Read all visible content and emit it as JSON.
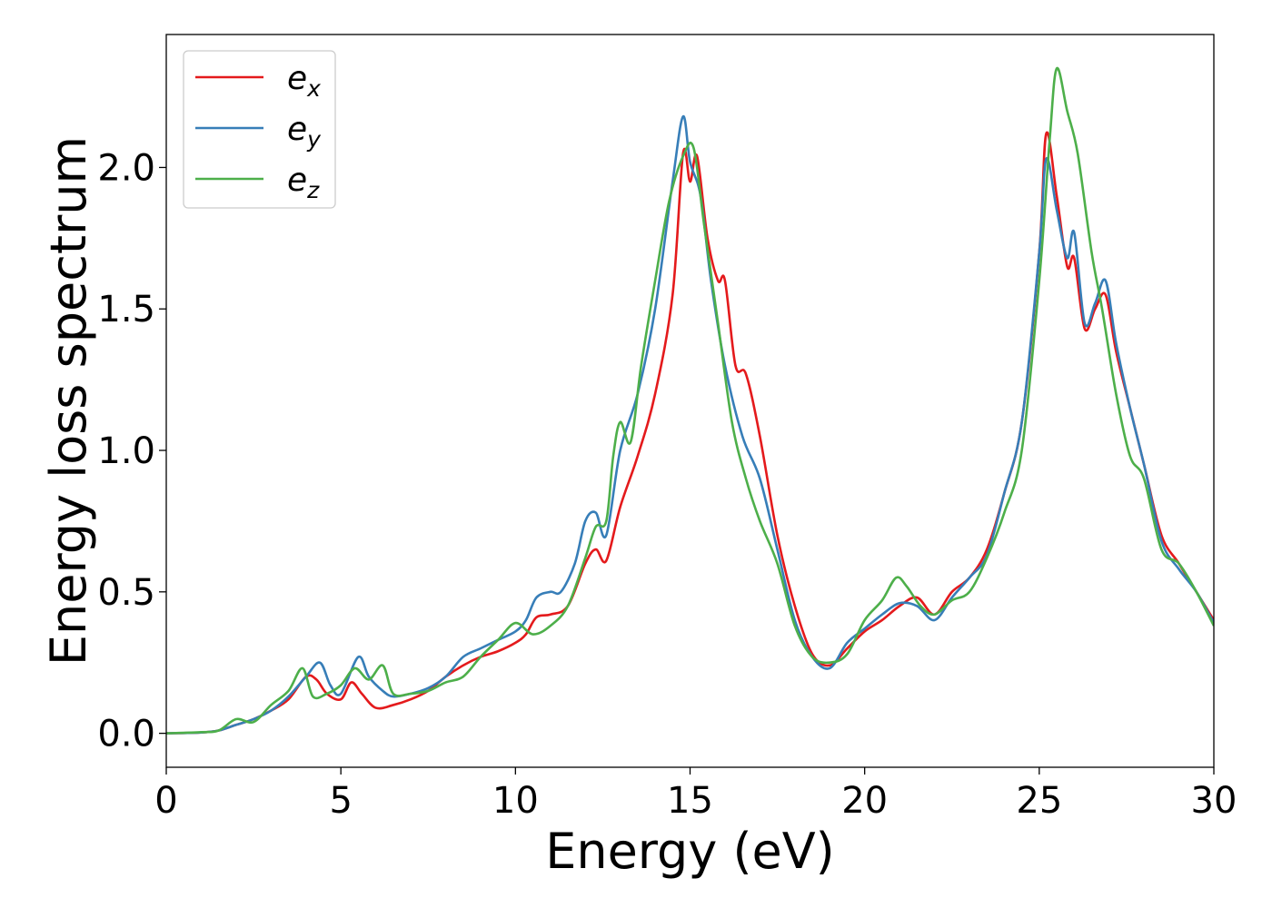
{
  "chart_data": {
    "type": "line",
    "title": "",
    "xlabel": "Energy (eV)",
    "ylabel": "Energy loss spectrum",
    "xlim": [
      0,
      30
    ],
    "ylim": [
      -0.12,
      2.47
    ],
    "xticks": [
      0,
      5,
      10,
      15,
      20,
      25,
      30
    ],
    "yticks": [
      0.0,
      0.5,
      1.0,
      1.5,
      2.0
    ],
    "xtick_labels": [
      "0",
      "5",
      "10",
      "15",
      "20",
      "25",
      "30"
    ],
    "ytick_labels": [
      "0.0",
      "0.5",
      "1.0",
      "1.5",
      "2.0"
    ],
    "grid": false,
    "legend_position": "top-left",
    "series": [
      {
        "name": "e",
        "subscript": "x",
        "color": "#e41a1c",
        "points": [
          [
            0,
            0
          ],
          [
            1,
            0.003
          ],
          [
            1.5,
            0.01
          ],
          [
            2,
            0.03
          ],
          [
            2.5,
            0.05
          ],
          [
            3,
            0.08
          ],
          [
            3.5,
            0.12
          ],
          [
            4,
            0.2
          ],
          [
            4.3,
            0.19
          ],
          [
            4.6,
            0.14
          ],
          [
            5,
            0.12
          ],
          [
            5.3,
            0.18
          ],
          [
            5.6,
            0.14
          ],
          [
            6,
            0.09
          ],
          [
            6.5,
            0.1
          ],
          [
            7,
            0.12
          ],
          [
            7.5,
            0.15
          ],
          [
            8,
            0.2
          ],
          [
            8.5,
            0.24
          ],
          [
            9,
            0.27
          ],
          [
            9.5,
            0.29
          ],
          [
            10,
            0.32
          ],
          [
            10.3,
            0.35
          ],
          [
            10.6,
            0.41
          ],
          [
            11,
            0.42
          ],
          [
            11.5,
            0.45
          ],
          [
            12,
            0.6
          ],
          [
            12.3,
            0.65
          ],
          [
            12.6,
            0.61
          ],
          [
            13,
            0.8
          ],
          [
            13.5,
            0.98
          ],
          [
            14,
            1.2
          ],
          [
            14.5,
            1.55
          ],
          [
            14.8,
            2.05
          ],
          [
            15,
            1.95
          ],
          [
            15.2,
            2.04
          ],
          [
            15.5,
            1.75
          ],
          [
            15.8,
            1.6
          ],
          [
            16,
            1.6
          ],
          [
            16.3,
            1.3
          ],
          [
            16.6,
            1.27
          ],
          [
            17,
            1.05
          ],
          [
            17.5,
            0.7
          ],
          [
            18,
            0.45
          ],
          [
            18.5,
            0.28
          ],
          [
            19,
            0.24
          ],
          [
            19.5,
            0.3
          ],
          [
            20,
            0.36
          ],
          [
            20.5,
            0.4
          ],
          [
            21,
            0.45
          ],
          [
            21.5,
            0.48
          ],
          [
            22,
            0.42
          ],
          [
            22.5,
            0.5
          ],
          [
            23,
            0.55
          ],
          [
            23.5,
            0.65
          ],
          [
            24,
            0.85
          ],
          [
            24.5,
            1.1
          ],
          [
            25,
            1.7
          ],
          [
            25.2,
            2.12
          ],
          [
            25.5,
            1.9
          ],
          [
            25.8,
            1.65
          ],
          [
            26,
            1.68
          ],
          [
            26.3,
            1.43
          ],
          [
            26.6,
            1.5
          ],
          [
            26.9,
            1.55
          ],
          [
            27.2,
            1.35
          ],
          [
            27.6,
            1.15
          ],
          [
            28,
            0.95
          ],
          [
            28.5,
            0.7
          ],
          [
            29,
            0.6
          ],
          [
            29.5,
            0.5
          ],
          [
            30,
            0.4
          ]
        ]
      },
      {
        "name": "e",
        "subscript": "y",
        "color": "#377eb8",
        "points": [
          [
            0,
            0
          ],
          [
            1,
            0.003
          ],
          [
            1.5,
            0.01
          ],
          [
            2,
            0.03
          ],
          [
            2.5,
            0.05
          ],
          [
            3,
            0.08
          ],
          [
            3.5,
            0.13
          ],
          [
            4,
            0.2
          ],
          [
            4.4,
            0.25
          ],
          [
            4.7,
            0.17
          ],
          [
            5,
            0.14
          ],
          [
            5.5,
            0.27
          ],
          [
            5.8,
            0.2
          ],
          [
            6.2,
            0.15
          ],
          [
            6.5,
            0.13
          ],
          [
            7,
            0.14
          ],
          [
            7.5,
            0.16
          ],
          [
            8,
            0.2
          ],
          [
            8.5,
            0.27
          ],
          [
            9,
            0.3
          ],
          [
            9.5,
            0.33
          ],
          [
            10,
            0.36
          ],
          [
            10.3,
            0.4
          ],
          [
            10.6,
            0.48
          ],
          [
            11,
            0.5
          ],
          [
            11.3,
            0.5
          ],
          [
            11.7,
            0.6
          ],
          [
            12,
            0.75
          ],
          [
            12.3,
            0.78
          ],
          [
            12.6,
            0.7
          ],
          [
            13,
            1.0
          ],
          [
            13.5,
            1.2
          ],
          [
            14,
            1.5
          ],
          [
            14.5,
            1.95
          ],
          [
            14.8,
            2.18
          ],
          [
            15,
            2.02
          ],
          [
            15.3,
            1.9
          ],
          [
            15.6,
            1.6
          ],
          [
            16,
            1.3
          ],
          [
            16.5,
            1.05
          ],
          [
            17,
            0.9
          ],
          [
            17.5,
            0.65
          ],
          [
            18,
            0.4
          ],
          [
            18.5,
            0.27
          ],
          [
            19,
            0.23
          ],
          [
            19.5,
            0.32
          ],
          [
            20,
            0.37
          ],
          [
            20.5,
            0.42
          ],
          [
            21,
            0.46
          ],
          [
            21.5,
            0.45
          ],
          [
            22,
            0.4
          ],
          [
            22.5,
            0.48
          ],
          [
            23,
            0.55
          ],
          [
            23.5,
            0.63
          ],
          [
            24,
            0.85
          ],
          [
            24.5,
            1.1
          ],
          [
            25,
            1.7
          ],
          [
            25.2,
            2.03
          ],
          [
            25.5,
            1.85
          ],
          [
            25.8,
            1.68
          ],
          [
            26,
            1.77
          ],
          [
            26.3,
            1.45
          ],
          [
            26.6,
            1.52
          ],
          [
            26.9,
            1.6
          ],
          [
            27.2,
            1.38
          ],
          [
            27.6,
            1.15
          ],
          [
            28,
            0.95
          ],
          [
            28.5,
            0.68
          ],
          [
            29,
            0.58
          ],
          [
            29.5,
            0.5
          ],
          [
            30,
            0.39
          ]
        ]
      },
      {
        "name": "e",
        "subscript": "z",
        "color": "#4daf4a",
        "points": [
          [
            0,
            0
          ],
          [
            1,
            0.004
          ],
          [
            1.5,
            0.01
          ],
          [
            2,
            0.05
          ],
          [
            2.5,
            0.04
          ],
          [
            3,
            0.1
          ],
          [
            3.5,
            0.15
          ],
          [
            3.9,
            0.23
          ],
          [
            4.2,
            0.13
          ],
          [
            4.6,
            0.14
          ],
          [
            5,
            0.17
          ],
          [
            5.4,
            0.23
          ],
          [
            5.8,
            0.19
          ],
          [
            6.2,
            0.24
          ],
          [
            6.5,
            0.14
          ],
          [
            7,
            0.14
          ],
          [
            7.5,
            0.15
          ],
          [
            8,
            0.18
          ],
          [
            8.5,
            0.2
          ],
          [
            9,
            0.27
          ],
          [
            9.5,
            0.33
          ],
          [
            10,
            0.39
          ],
          [
            10.5,
            0.35
          ],
          [
            11,
            0.38
          ],
          [
            11.5,
            0.45
          ],
          [
            12,
            0.62
          ],
          [
            12.3,
            0.73
          ],
          [
            12.6,
            0.75
          ],
          [
            12.8,
            0.98
          ],
          [
            13,
            1.1
          ],
          [
            13.3,
            1.03
          ],
          [
            13.6,
            1.3
          ],
          [
            14,
            1.6
          ],
          [
            14.4,
            1.88
          ],
          [
            14.8,
            2.04
          ],
          [
            15.1,
            2.07
          ],
          [
            15.4,
            1.8
          ],
          [
            15.8,
            1.45
          ],
          [
            16.2,
            1.1
          ],
          [
            16.6,
            0.9
          ],
          [
            17,
            0.75
          ],
          [
            17.5,
            0.6
          ],
          [
            18,
            0.38
          ],
          [
            18.5,
            0.27
          ],
          [
            19,
            0.25
          ],
          [
            19.5,
            0.28
          ],
          [
            20,
            0.4
          ],
          [
            20.5,
            0.47
          ],
          [
            20.9,
            0.55
          ],
          [
            21.2,
            0.52
          ],
          [
            21.6,
            0.45
          ],
          [
            22,
            0.42
          ],
          [
            22.5,
            0.47
          ],
          [
            23,
            0.5
          ],
          [
            23.5,
            0.62
          ],
          [
            24,
            0.78
          ],
          [
            24.5,
            1.0
          ],
          [
            25,
            1.6
          ],
          [
            25.3,
            2.1
          ],
          [
            25.5,
            2.35
          ],
          [
            25.8,
            2.2
          ],
          [
            26.1,
            2.05
          ],
          [
            26.5,
            1.7
          ],
          [
            26.8,
            1.5
          ],
          [
            27.2,
            1.2
          ],
          [
            27.6,
            0.98
          ],
          [
            28,
            0.9
          ],
          [
            28.5,
            0.65
          ],
          [
            29,
            0.6
          ],
          [
            29.5,
            0.5
          ],
          [
            30,
            0.38
          ]
        ]
      }
    ]
  }
}
